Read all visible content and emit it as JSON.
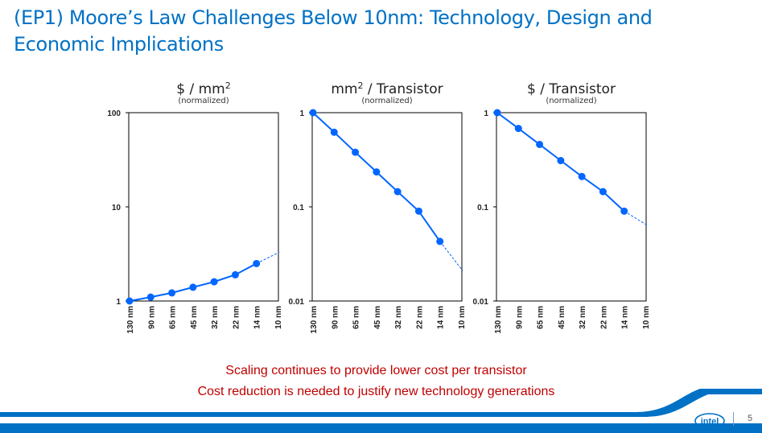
{
  "slide": {
    "title": "(EP1) Moore’s Law Challenges Below 10nm: Technology, Design and Economic Implications",
    "conclusions": [
      "Scaling continues to provide lower cost per transistor",
      "Cost reduction is needed to justify new technology generations"
    ],
    "page_number": "5",
    "logo_text": "intel"
  },
  "colors": {
    "title": "#0071c5",
    "series": "#0066ff",
    "conclusion": "#c00000",
    "footer": "#0071c5"
  },
  "chart_data": [
    {
      "type": "line",
      "title_base": "$ / mm",
      "title_sup": "2",
      "title_suffix": "",
      "subtitle": "(normalized)",
      "categories": [
        "130 nm",
        "90 nm",
        "65 nm",
        "45 nm",
        "32 nm",
        "22 nm",
        "14 nm",
        "10 nm"
      ],
      "values": [
        1,
        1.1,
        1.22,
        1.4,
        1.6,
        1.9,
        2.5,
        null
      ],
      "projection": [
        2.5,
        3.3
      ],
      "yscale": "log",
      "ylim": [
        1,
        100
      ],
      "yticks": [
        1,
        10,
        100
      ],
      "ytick_labels": [
        "1",
        "10",
        "100"
      ]
    },
    {
      "type": "line",
      "title_base": "mm",
      "title_sup": "2",
      "title_suffix": " / Transistor",
      "subtitle": "(normalized)",
      "categories": [
        "130 nm",
        "90 nm",
        "65 nm",
        "45 nm",
        "32 nm",
        "22 nm",
        "14 nm",
        "10 nm"
      ],
      "values": [
        1,
        0.62,
        0.38,
        0.235,
        0.145,
        0.09,
        0.043,
        null
      ],
      "projection": [
        0.043,
        0.021
      ],
      "yscale": "log",
      "ylim": [
        0.01,
        1
      ],
      "yticks": [
        0.01,
        0.1,
        1
      ],
      "ytick_labels": [
        "0.01",
        "0.1",
        "1"
      ]
    },
    {
      "type": "line",
      "title_base": "$ / Transistor",
      "title_sup": "",
      "title_suffix": "",
      "subtitle": "(normalized)",
      "categories": [
        "130 nm",
        "90 nm",
        "65 nm",
        "45 nm",
        "32 nm",
        "22 nm",
        "14 nm",
        "10 nm"
      ],
      "values": [
        1,
        0.68,
        0.46,
        0.31,
        0.21,
        0.145,
        0.09,
        null
      ],
      "projection": [
        0.09,
        0.064
      ],
      "yscale": "log",
      "ylim": [
        0.01,
        1
      ],
      "yticks": [
        0.01,
        0.1,
        1
      ],
      "ytick_labels": [
        "0.01",
        "0.1",
        "1"
      ]
    }
  ]
}
